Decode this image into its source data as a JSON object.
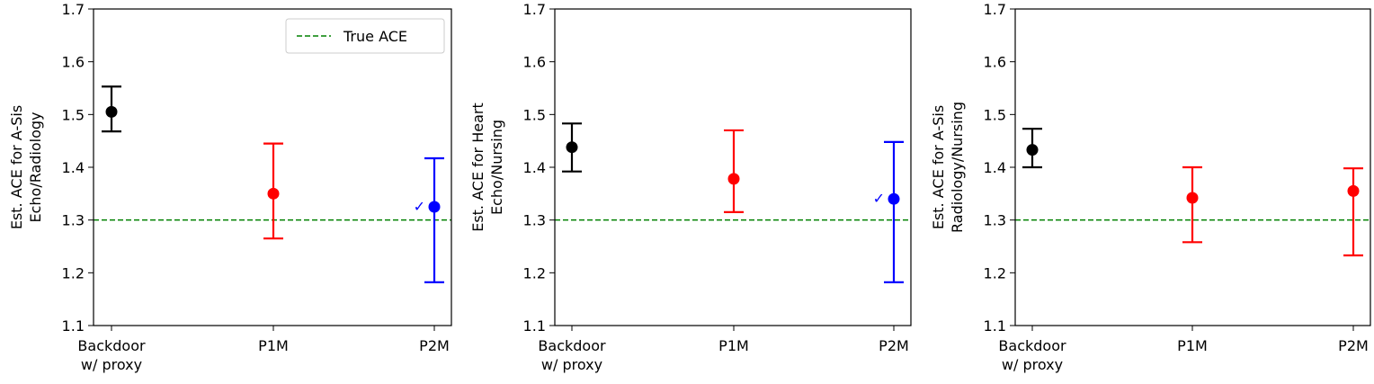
{
  "chart_data": [
    {
      "type": "scatter",
      "ylabel": [
        "Est. ACE for A-Sis",
        "Echo/Radiology"
      ],
      "categories": [
        [
          "Backdoor",
          "w/ proxy"
        ],
        [
          "P1M"
        ],
        [
          "P2M"
        ]
      ],
      "ylim": [
        1.1,
        1.7
      ],
      "yticks": [
        "1.1",
        "1.2",
        "1.3",
        "1.4",
        "1.5",
        "1.6",
        "1.7"
      ],
      "reference_line": {
        "name": "True ACE",
        "value": 1.3,
        "color": "#008000",
        "style": "dashed"
      },
      "legend": {
        "show": true,
        "location": "upper right"
      },
      "points": [
        {
          "value": 1.505,
          "lower": 1.468,
          "upper": 1.553,
          "color": "#000000",
          "check": false
        },
        {
          "value": 1.35,
          "lower": 1.265,
          "upper": 1.445,
          "color": "#ff0000",
          "check": false
        },
        {
          "value": 1.325,
          "lower": 1.182,
          "upper": 1.417,
          "color": "#0000ff",
          "check": true
        }
      ]
    },
    {
      "type": "scatter",
      "ylabel": [
        "Est. ACE for Heart",
        "Echo/Nursing"
      ],
      "categories": [
        [
          "Backdoor",
          "w/ proxy"
        ],
        [
          "P1M"
        ],
        [
          "P2M"
        ]
      ],
      "ylim": [
        1.1,
        1.7
      ],
      "yticks": [
        "1.1",
        "1.2",
        "1.3",
        "1.4",
        "1.5",
        "1.6",
        "1.7"
      ],
      "reference_line": {
        "name": "True ACE",
        "value": 1.3,
        "color": "#008000",
        "style": "dashed"
      },
      "legend": {
        "show": false
      },
      "points": [
        {
          "value": 1.438,
          "lower": 1.392,
          "upper": 1.483,
          "color": "#000000",
          "check": false
        },
        {
          "value": 1.378,
          "lower": 1.315,
          "upper": 1.47,
          "color": "#ff0000",
          "check": false
        },
        {
          "value": 1.34,
          "lower": 1.182,
          "upper": 1.448,
          "color": "#0000ff",
          "check": true
        }
      ]
    },
    {
      "type": "scatter",
      "ylabel": [
        "Est. ACE for A-Sis",
        "Radiology/Nursing"
      ],
      "categories": [
        [
          "Backdoor",
          "w/ proxy"
        ],
        [
          "P1M"
        ],
        [
          "P2M"
        ]
      ],
      "ylim": [
        1.1,
        1.7
      ],
      "yticks": [
        "1.1",
        "1.2",
        "1.3",
        "1.4",
        "1.5",
        "1.6",
        "1.7"
      ],
      "reference_line": {
        "name": "True ACE",
        "value": 1.3,
        "color": "#008000",
        "style": "dashed"
      },
      "legend": {
        "show": false
      },
      "points": [
        {
          "value": 1.433,
          "lower": 1.4,
          "upper": 1.473,
          "color": "#000000",
          "check": false
        },
        {
          "value": 1.342,
          "lower": 1.258,
          "upper": 1.4,
          "color": "#ff0000",
          "check": false
        },
        {
          "value": 1.355,
          "lower": 1.233,
          "upper": 1.398,
          "color": "#ff0000",
          "check": false
        }
      ]
    }
  ],
  "check_mark": "✓"
}
